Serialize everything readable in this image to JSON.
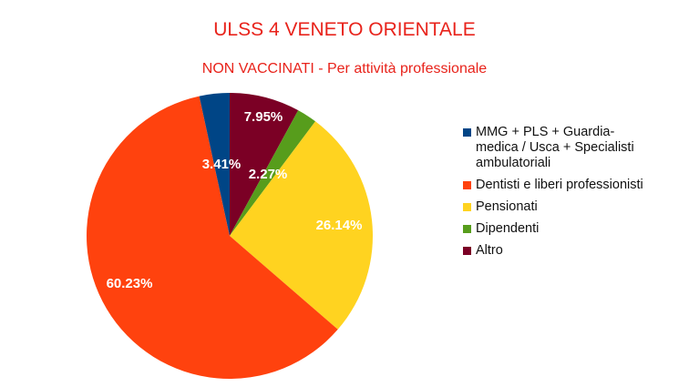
{
  "chart_data": {
    "type": "pie",
    "title": "ULSS 4 VENETO ORIENTALE",
    "subtitle": "NON VACCINATI - Per attività professionale",
    "legend_position": "right",
    "slices": [
      {
        "name": "Altro",
        "value": 7.95,
        "label": "7.95%",
        "color": "#7b0025"
      },
      {
        "name": "Dipendenti",
        "value": 2.27,
        "label": "2.27%",
        "color": "#579d1c"
      },
      {
        "name": "Pensionati",
        "value": 26.14,
        "label": "26.14%",
        "color": "#ffd320"
      },
      {
        "name": "Dentisti e liberi professionisti",
        "value": 60.23,
        "label": "60.23%",
        "color": "#ff420e"
      },
      {
        "name": "MMG + PLS + Guardia-medica / Usca + Specialisti ambulatoriali",
        "value": 3.41,
        "label": "3.41%",
        "color": "#004586"
      }
    ],
    "legend": [
      {
        "lines": [
          "MMG + PLS + Guardia-",
          "medica / Usca + Specialisti",
          "ambulatoriali"
        ],
        "color": "#004586"
      },
      {
        "lines": [
          "Dentisti e liberi professionisti"
        ],
        "color": "#ff420e"
      },
      {
        "lines": [
          "Pensionati"
        ],
        "color": "#ffd320"
      },
      {
        "lines": [
          "Dipendenti"
        ],
        "color": "#579d1c"
      },
      {
        "lines": [
          "Altro"
        ],
        "color": "#7b0025"
      }
    ]
  }
}
